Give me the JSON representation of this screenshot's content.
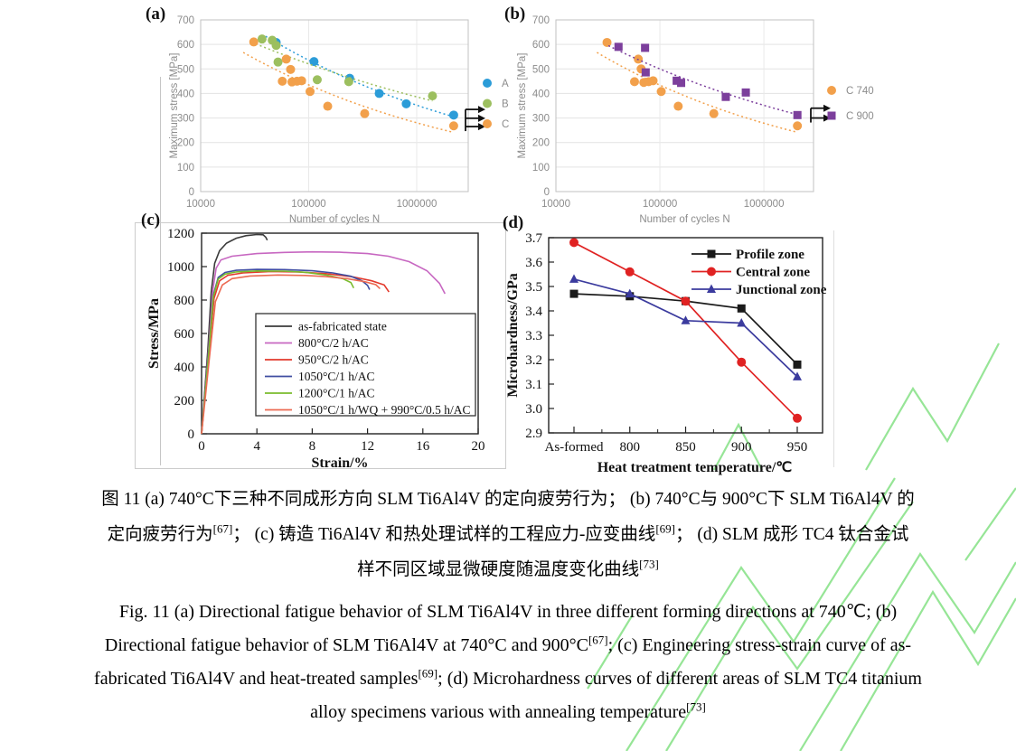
{
  "panels": {
    "a": "(a)",
    "b": "(b)",
    "c": "(c)",
    "d": "(d)"
  },
  "chart_data": [
    {
      "id": "a",
      "type": "scatter",
      "xscale": "log",
      "xlabel": "Number of cycles N",
      "ylabel": "Maximum stress [MPa]",
      "xlim": [
        10000,
        3000000
      ],
      "ylim": [
        0,
        700
      ],
      "xticks": [
        10000,
        100000,
        1000000
      ],
      "yticks": [
        0,
        100,
        200,
        300,
        400,
        500,
        600,
        700
      ],
      "grid": true,
      "legend_position": "right-outside",
      "series": [
        {
          "name": "A",
          "color": "#2B9CD8",
          "marker": "circle",
          "trend": true,
          "points": [
            [
              50000,
              608
            ],
            [
              112000,
              530
            ],
            [
              240000,
              462
            ],
            [
              450000,
              400
            ],
            [
              800000,
              358
            ],
            [
              2200000,
              312
            ]
          ]
        },
        {
          "name": "B",
          "color": "#9CBF5F",
          "marker": "circle",
          "trend": true,
          "points": [
            [
              37000,
              622
            ],
            [
              46000,
              617
            ],
            [
              50000,
              596
            ],
            [
              52000,
              528
            ],
            [
              120000,
              456
            ],
            [
              235000,
              448
            ],
            [
              1400000,
              390
            ]
          ]
        },
        {
          "name": "C",
          "color": "#F2A04B",
          "marker": "circle",
          "trend": true,
          "points": [
            [
              31000,
              610
            ],
            [
              62000,
              540
            ],
            [
              68000,
              498
            ],
            [
              57000,
              450
            ],
            [
              70000,
              447
            ],
            [
              78000,
              450
            ],
            [
              86000,
              452
            ],
            [
              103000,
              408
            ],
            [
              150000,
              348
            ],
            [
              330000,
              318
            ],
            [
              2200000,
              268
            ]
          ]
        }
      ],
      "runout_arrows": [
        335,
        299,
        265
      ]
    },
    {
      "id": "b",
      "type": "scatter",
      "xscale": "log",
      "xlabel": "Number of cycles N",
      "ylabel": "Maximum stress [MPa]",
      "xlim": [
        10000,
        3000000
      ],
      "ylim": [
        0,
        700
      ],
      "xticks": [
        10000,
        100000,
        1000000
      ],
      "yticks": [
        0,
        100,
        200,
        300,
        400,
        500,
        600,
        700
      ],
      "grid": true,
      "legend_position": "right-outside",
      "series": [
        {
          "name": "C 740",
          "color": "#F2A04B",
          "marker": "circle",
          "trend": true,
          "points": [
            [
              31000,
              608
            ],
            [
              62000,
              540
            ],
            [
              66000,
              500
            ],
            [
              57000,
              448
            ],
            [
              70000,
              445
            ],
            [
              78000,
              448
            ],
            [
              86000,
              452
            ],
            [
              103000,
              408
            ],
            [
              150000,
              348
            ],
            [
              330000,
              318
            ],
            [
              2100000,
              268
            ]
          ]
        },
        {
          "name": "C 900",
          "color": "#7C3F9C",
          "marker": "square",
          "trend": true,
          "points": [
            [
              40000,
              590
            ],
            [
              72000,
              586
            ],
            [
              73000,
              486
            ],
            [
              145000,
              452
            ],
            [
              160000,
              443
            ],
            [
              430000,
              386
            ],
            [
              670000,
              404
            ],
            [
              2100000,
              312
            ]
          ]
        }
      ],
      "runout_arrows": [
        340,
        300
      ]
    },
    {
      "id": "c",
      "type": "line",
      "xlabel": "Strain/%",
      "ylabel": "Stress/MPa",
      "xlim": [
        0,
        20
      ],
      "ylim": [
        0,
        1200
      ],
      "xticks": [
        0,
        4,
        8,
        12,
        16,
        20
      ],
      "yticks": [
        0,
        200,
        400,
        600,
        800,
        1000,
        1200
      ],
      "grid": false,
      "legend_position": "inside-bottom-right",
      "legend_border": true,
      "series": [
        {
          "name": "as-fabricated state",
          "color": "#3B3B3B",
          "points": [
            [
              0,
              0
            ],
            [
              0.45,
              500
            ],
            [
              0.7,
              850
            ],
            [
              0.95,
              1020
            ],
            [
              1.3,
              1095
            ],
            [
              1.8,
              1140
            ],
            [
              2.5,
              1170
            ],
            [
              3.2,
              1185
            ],
            [
              4.0,
              1192
            ],
            [
              4.45,
              1190
            ],
            [
              4.65,
              1175
            ],
            [
              4.75,
              1158
            ]
          ]
        },
        {
          "name": "800°C/2 h/AC",
          "color": "#C767C1",
          "points": [
            [
              0,
              0
            ],
            [
              0.5,
              500
            ],
            [
              0.8,
              850
            ],
            [
              1.05,
              990
            ],
            [
              1.4,
              1040
            ],
            [
              2.2,
              1062
            ],
            [
              4,
              1078
            ],
            [
              6,
              1085
            ],
            [
              8,
              1088
            ],
            [
              10,
              1086
            ],
            [
              12,
              1078
            ],
            [
              13.5,
              1062
            ],
            [
              15,
              1030
            ],
            [
              16.3,
              975
            ],
            [
              17.2,
              900
            ],
            [
              17.6,
              838
            ]
          ]
        },
        {
          "name": "950°C/2 h/AC",
          "color": "#E3392C",
          "points": [
            [
              0,
              0
            ],
            [
              0.5,
              460
            ],
            [
              0.9,
              810
            ],
            [
              1.3,
              915
            ],
            [
              1.9,
              948
            ],
            [
              3,
              962
            ],
            [
              5,
              970
            ],
            [
              7,
              968
            ],
            [
              9,
              958
            ],
            [
              11,
              938
            ],
            [
              12.3,
              915
            ],
            [
              13.2,
              890
            ],
            [
              13.55,
              848
            ]
          ]
        },
        {
          "name": "1050°C/1 h/AC",
          "color": "#3F4EA1",
          "points": [
            [
              0,
              0
            ],
            [
              0.5,
              480
            ],
            [
              0.85,
              830
            ],
            [
              1.2,
              935
            ],
            [
              1.7,
              965
            ],
            [
              2.5,
              978
            ],
            [
              4,
              983
            ],
            [
              6,
              982
            ],
            [
              8,
              975
            ],
            [
              9.5,
              962
            ],
            [
              10.8,
              942
            ],
            [
              11.6,
              915
            ],
            [
              12.0,
              888
            ],
            [
              12.15,
              862
            ]
          ]
        },
        {
          "name": "1200°C/1 h/AC",
          "color": "#7ABB2D",
          "points": [
            [
              0,
              0
            ],
            [
              0.5,
              470
            ],
            [
              0.85,
              820
            ],
            [
              1.2,
              925
            ],
            [
              1.7,
              955
            ],
            [
              2.5,
              968
            ],
            [
              4,
              974
            ],
            [
              6,
              973
            ],
            [
              7.5,
              966
            ],
            [
              9,
              950
            ],
            [
              10.2,
              928
            ],
            [
              10.8,
              905
            ],
            [
              11.0,
              872
            ]
          ]
        },
        {
          "name": "1050°C/1 h/WQ + 990°C/0.5 h/AC",
          "color": "#EC6A52",
          "points": [
            [
              0,
              0
            ],
            [
              0.55,
              440
            ],
            [
              1.0,
              790
            ],
            [
              1.5,
              890
            ],
            [
              2.2,
              928
            ],
            [
              3.5,
              944
            ],
            [
              5.5,
              950
            ],
            [
              7.5,
              947
            ],
            [
              9,
              940
            ],
            [
              10.5,
              928
            ],
            [
              11.8,
              910
            ],
            [
              12.6,
              892
            ],
            [
              12.9,
              868
            ]
          ]
        }
      ]
    },
    {
      "id": "d",
      "type": "line-category",
      "xlabel": "Heat treatment temperature/℃",
      "ylabel": "Microhardness/GPa",
      "categories": [
        "As-formed",
        "800",
        "850",
        "900",
        "950"
      ],
      "ylim": [
        2.9,
        3.7
      ],
      "yticks": [
        2.9,
        3.0,
        3.1,
        3.2,
        3.3,
        3.4,
        3.5,
        3.6,
        3.7
      ],
      "grid": false,
      "legend_position": "inside-top-right",
      "series": [
        {
          "name": "Profile zone",
          "color": "#1A1A1A",
          "marker": "square",
          "values": [
            3.47,
            3.46,
            3.44,
            3.41,
            3.18
          ]
        },
        {
          "name": "Central zone",
          "color": "#E02222",
          "marker": "circle",
          "values": [
            3.68,
            3.56,
            3.44,
            3.19,
            2.96
          ]
        },
        {
          "name": "Junctional zone",
          "color": "#3B3B9E",
          "marker": "triangle",
          "values": [
            3.53,
            3.47,
            3.36,
            3.35,
            3.13
          ]
        }
      ]
    }
  ],
  "caption": {
    "zh": [
      [
        {
          "t": "图 11 (a) 740°C下三种不同成形方向 SLM Ti6Al4V 的定向疲劳行为； (b) 740°C与 900°C下 SLM Ti6Al4V 的"
        }
      ],
      [
        {
          "t": "定向疲劳行为"
        },
        {
          "sup": "[67]"
        },
        {
          "t": "； (c) 铸造 Ti6Al4V 和热处理试样的工程应力-应变曲线"
        },
        {
          "sup": "[69]"
        },
        {
          "t": "； (d) SLM 成形 TC4 钛合金试"
        }
      ],
      [
        {
          "t": "样不同区域显微硬度随温度变化曲线"
        },
        {
          "sup": "[73]"
        }
      ]
    ],
    "en": [
      [
        {
          "t": "Fig. 11 (a) Directional fatigue behavior of SLM Ti6Al4V in three different forming directions at 740℃; (b)"
        }
      ],
      [
        {
          "t": "Directional fatigue behavior of SLM Ti6Al4V at 740°C and 900°C"
        },
        {
          "sup": "[67]"
        },
        {
          "t": "; (c) Engineering stress-strain curve of as-"
        }
      ],
      [
        {
          "t": "fabricated Ti6Al4V and heat-treated samples"
        },
        {
          "sup": "[69]"
        },
        {
          "t": "; (d) Microhardness curves of different areas of SLM TC4 titanium"
        }
      ],
      [
        {
          "t": "alloy specimens various with annealing temperature"
        },
        {
          "sup": "[73]"
        }
      ]
    ]
  },
  "colors": {
    "axis_text_gray": "#8c8c8c",
    "gridline": "#e3e3e3",
    "watermark_green": "#7ddf7d"
  }
}
